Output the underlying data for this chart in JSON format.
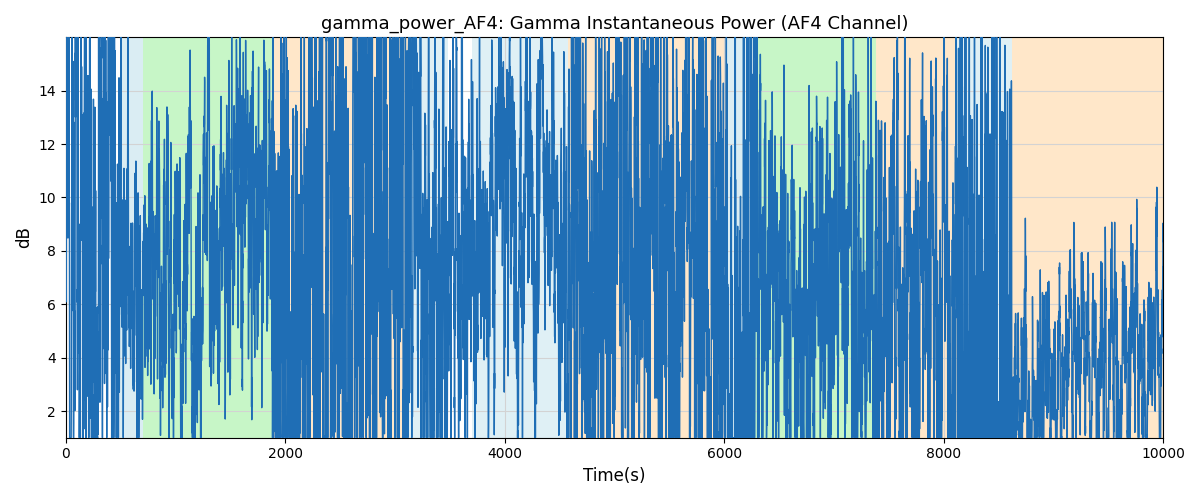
{
  "title": "gamma_power_AF4: Gamma Instantaneous Power (AF4 Channel)",
  "xlabel": "Time(s)",
  "ylabel": "dB",
  "xlim": [
    0,
    10000
  ],
  "ylim": [
    1,
    16
  ],
  "yticks": [
    2,
    4,
    6,
    8,
    10,
    12,
    14
  ],
  "xticks": [
    0,
    2000,
    4000,
    6000,
    8000,
    10000
  ],
  "line_color": "#1f6eb5",
  "line_width": 1.0,
  "bg_regions": [
    {
      "xmin": 0,
      "xmax": 490,
      "color": "#ffffff",
      "alpha": 0.0
    },
    {
      "xmin": 490,
      "xmax": 700,
      "color": "#add8e6",
      "alpha": 0.45
    },
    {
      "xmin": 700,
      "xmax": 1880,
      "color": "#90ee90",
      "alpha": 0.5
    },
    {
      "xmin": 1880,
      "xmax": 3130,
      "color": "#ffd59e",
      "alpha": 0.55
    },
    {
      "xmin": 3130,
      "xmax": 3480,
      "color": "#add8e6",
      "alpha": 0.38
    },
    {
      "xmin": 3480,
      "xmax": 3700,
      "color": "#ffffff",
      "alpha": 0.0
    },
    {
      "xmin": 3700,
      "xmax": 4580,
      "color": "#add8e6",
      "alpha": 0.38
    },
    {
      "xmin": 4580,
      "xmax": 6020,
      "color": "#ffd59e",
      "alpha": 0.55
    },
    {
      "xmin": 6020,
      "xmax": 6270,
      "color": "#add8e6",
      "alpha": 0.45
    },
    {
      "xmin": 6270,
      "xmax": 7380,
      "color": "#90ee90",
      "alpha": 0.5
    },
    {
      "xmin": 7380,
      "xmax": 8120,
      "color": "#ffd59e",
      "alpha": 0.55
    },
    {
      "xmin": 8120,
      "xmax": 8620,
      "color": "#add8e6",
      "alpha": 0.38
    },
    {
      "xmin": 8620,
      "xmax": 10000,
      "color": "#ffd59e",
      "alpha": 0.55
    }
  ],
  "figure_width": 12.0,
  "figure_height": 5.0,
  "dpi": 100
}
